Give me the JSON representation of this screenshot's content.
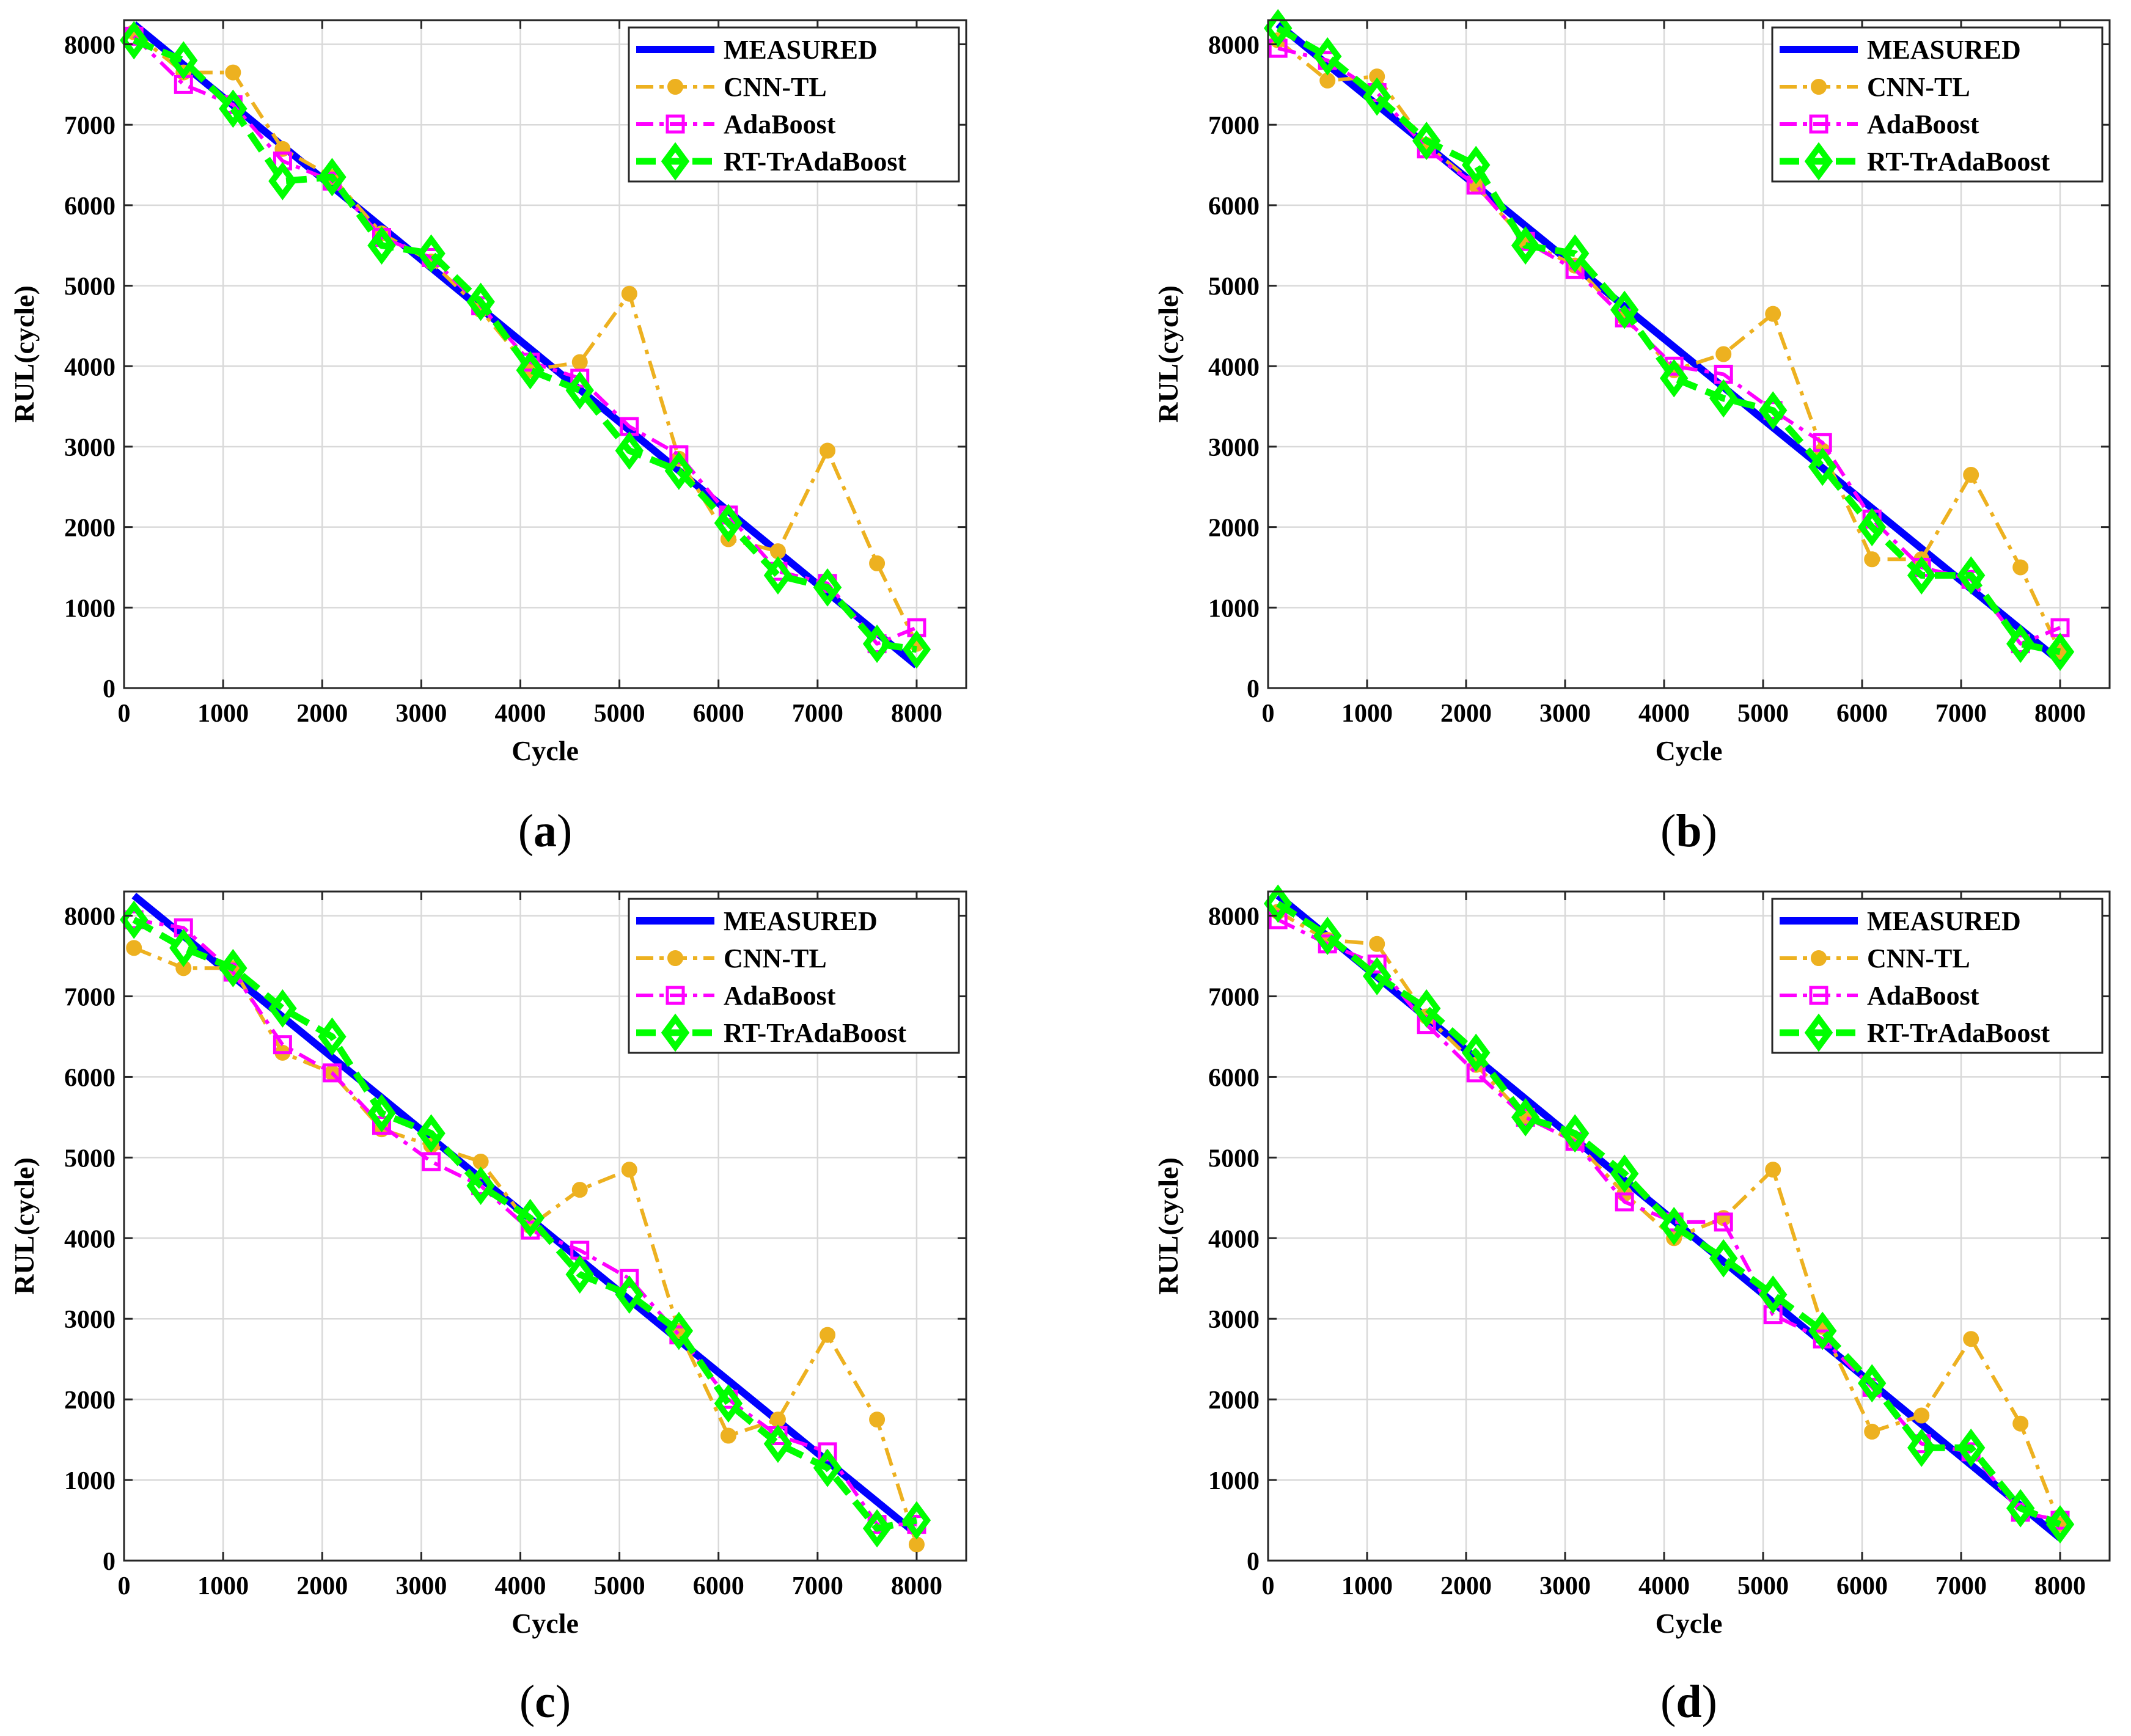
{
  "chart_data": [
    {
      "type": "line",
      "panel_label": "a",
      "xlabel": "Cycle",
      "ylabel": "RUL(cycle)",
      "xlim": [
        0,
        8500
      ],
      "ylim": [
        0,
        8300
      ],
      "xticks": [
        0,
        1000,
        2000,
        3000,
        4000,
        5000,
        6000,
        7000,
        8000
      ],
      "yticks": [
        0,
        1000,
        2000,
        3000,
        4000,
        5000,
        6000,
        7000,
        8000
      ],
      "grid": true,
      "legend_position": "top-right",
      "series": [
        {
          "name": "MEASURED",
          "color": "#0000ff",
          "style": "solid",
          "marker": "none",
          "x": [
            100,
            8000
          ],
          "y": [
            8250,
            280
          ]
        },
        {
          "name": "CNN-TL",
          "color": "#edb120",
          "style": "dashdot",
          "marker": "circle",
          "x": [
            100,
            600,
            1100,
            1600,
            2100,
            2600,
            3100,
            3600,
            4100,
            4600,
            5100,
            5600,
            6100,
            6600,
            7100,
            7600,
            8000
          ],
          "y": [
            8150,
            7650,
            7650,
            6700,
            6350,
            5650,
            5300,
            4700,
            3950,
            4050,
            4900,
            2850,
            1850,
            1700,
            2950,
            1550,
            550
          ]
        },
        {
          "name": "AdaBoost",
          "color": "#ff00ff",
          "style": "dashdot",
          "marker": "square",
          "x": [
            100,
            600,
            1100,
            1600,
            2100,
            2600,
            3100,
            3600,
            4100,
            4600,
            5100,
            5600,
            6100,
            6600,
            7100,
            7600,
            8000
          ],
          "y": [
            8100,
            7500,
            7250,
            6550,
            6300,
            5600,
            5350,
            4750,
            4050,
            3850,
            3250,
            2900,
            2150,
            1450,
            1300,
            550,
            750
          ]
        },
        {
          "name": "RT-TrAdaBoost",
          "color": "#00ff00",
          "style": "dashed",
          "marker": "diamond",
          "x": [
            100,
            600,
            1100,
            1600,
            2100,
            2600,
            3100,
            3600,
            4100,
            4600,
            5100,
            5600,
            6100,
            6600,
            7100,
            7600,
            8000
          ],
          "y": [
            8050,
            7800,
            7200,
            6300,
            6350,
            5500,
            5400,
            4800,
            3950,
            3700,
            2950,
            2700,
            2050,
            1400,
            1250,
            550,
            480
          ]
        }
      ]
    },
    {
      "type": "line",
      "panel_label": "b",
      "xlabel": "Cycle",
      "ylabel": "RUL(cycle)",
      "xlim": [
        0,
        8500
      ],
      "ylim": [
        0,
        8300
      ],
      "xticks": [
        0,
        1000,
        2000,
        3000,
        4000,
        5000,
        6000,
        7000,
        8000
      ],
      "yticks": [
        0,
        1000,
        2000,
        3000,
        4000,
        5000,
        6000,
        7000,
        8000
      ],
      "grid": true,
      "legend_position": "top-right",
      "series": [
        {
          "name": "MEASURED",
          "color": "#0000ff",
          "style": "solid",
          "marker": "none",
          "x": [
            100,
            8000
          ],
          "y": [
            8250,
            330
          ]
        },
        {
          "name": "CNN-TL",
          "color": "#edb120",
          "style": "dashdot",
          "marker": "circle",
          "x": [
            100,
            600,
            1100,
            1600,
            2100,
            2600,
            3100,
            3600,
            4100,
            4600,
            5100,
            5600,
            6100,
            6600,
            7100,
            7600,
            8000
          ],
          "y": [
            8050,
            7550,
            7600,
            6750,
            6250,
            5550,
            5250,
            4600,
            3950,
            4150,
            4650,
            2950,
            1600,
            1600,
            2650,
            1500,
            450
          ]
        },
        {
          "name": "AdaBoost",
          "color": "#ff00ff",
          "style": "dashdot",
          "marker": "square",
          "x": [
            100,
            600,
            1100,
            1600,
            2100,
            2600,
            3100,
            3600,
            4100,
            4600,
            5100,
            5600,
            6100,
            6600,
            7100,
            7600,
            8000
          ],
          "y": [
            7950,
            7800,
            7400,
            6700,
            6250,
            5550,
            5200,
            4600,
            4000,
            3900,
            3450,
            3050,
            2100,
            1500,
            1350,
            550,
            750
          ]
        },
        {
          "name": "RT-TrAdaBoost",
          "color": "#00ff00",
          "style": "dashed",
          "marker": "diamond",
          "x": [
            100,
            600,
            1100,
            1600,
            2100,
            2600,
            3100,
            3600,
            4100,
            4600,
            5100,
            5600,
            6100,
            6600,
            7100,
            7600,
            8000
          ],
          "y": [
            8200,
            7850,
            7350,
            6800,
            6500,
            5500,
            5400,
            4700,
            3850,
            3600,
            3450,
            2750,
            2000,
            1400,
            1400,
            550,
            450
          ]
        }
      ]
    },
    {
      "type": "line",
      "panel_label": "c",
      "xlabel": "Cycle",
      "ylabel": "RUL(cycle)",
      "xlim": [
        0,
        8500
      ],
      "ylim": [
        0,
        8300
      ],
      "xticks": [
        0,
        1000,
        2000,
        3000,
        4000,
        5000,
        6000,
        7000,
        8000
      ],
      "yticks": [
        0,
        1000,
        2000,
        3000,
        4000,
        5000,
        6000,
        7000,
        8000
      ],
      "grid": true,
      "legend_position": "top-right",
      "series": [
        {
          "name": "MEASURED",
          "color": "#0000ff",
          "style": "solid",
          "marker": "none",
          "x": [
            100,
            8000
          ],
          "y": [
            8250,
            330
          ]
        },
        {
          "name": "CNN-TL",
          "color": "#edb120",
          "style": "dashdot",
          "marker": "circle",
          "x": [
            100,
            600,
            1100,
            1600,
            2100,
            2600,
            3100,
            3600,
            4100,
            4600,
            5100,
            5600,
            6100,
            6600,
            7100,
            7600,
            8000
          ],
          "y": [
            7600,
            7350,
            7350,
            6300,
            6050,
            5350,
            5150,
            4950,
            4150,
            4600,
            4850,
            2850,
            1550,
            1750,
            2800,
            1750,
            200
          ]
        },
        {
          "name": "AdaBoost",
          "color": "#ff00ff",
          "style": "dashdot",
          "marker": "square",
          "x": [
            100,
            600,
            1100,
            1600,
            2100,
            2600,
            3100,
            3600,
            4100,
            4600,
            5100,
            5600,
            6100,
            6600,
            7100,
            7600,
            8000
          ],
          "y": [
            7950,
            7850,
            7300,
            6400,
            6050,
            5400,
            4950,
            4650,
            4100,
            3850,
            3500,
            2800,
            2000,
            1550,
            1350,
            450,
            450
          ]
        },
        {
          "name": "RT-TrAdaBoost",
          "color": "#00ff00",
          "style": "dashed",
          "marker": "diamond",
          "x": [
            100,
            600,
            1100,
            1600,
            2100,
            2600,
            3100,
            3600,
            4100,
            4600,
            5100,
            5600,
            6100,
            6600,
            7100,
            7600,
            8000
          ],
          "y": [
            7950,
            7600,
            7350,
            6850,
            6500,
            5550,
            5300,
            4650,
            4250,
            3550,
            3300,
            2850,
            1950,
            1450,
            1150,
            400,
            500
          ]
        }
      ]
    },
    {
      "type": "line",
      "panel_label": "d",
      "xlabel": "Cycle",
      "ylabel": "RUL(cycle)",
      "xlim": [
        0,
        8500
      ],
      "ylim": [
        0,
        8300
      ],
      "xticks": [
        0,
        1000,
        2000,
        3000,
        4000,
        5000,
        6000,
        7000,
        8000
      ],
      "yticks": [
        0,
        1000,
        2000,
        3000,
        4000,
        5000,
        6000,
        7000,
        8000
      ],
      "grid": true,
      "legend_position": "top-right",
      "series": [
        {
          "name": "MEASURED",
          "color": "#0000ff",
          "style": "solid",
          "marker": "none",
          "x": [
            100,
            8000
          ],
          "y": [
            8250,
            280
          ]
        },
        {
          "name": "CNN-TL",
          "color": "#edb120",
          "style": "dashdot",
          "marker": "circle",
          "x": [
            100,
            600,
            1100,
            1600,
            2100,
            2600,
            3100,
            3600,
            4100,
            4600,
            5100,
            5600,
            6100,
            6600,
            7100,
            7600,
            8000
          ],
          "y": [
            8050,
            7700,
            7650,
            6750,
            6150,
            5500,
            5200,
            4550,
            4000,
            4250,
            4850,
            2900,
            1600,
            1800,
            2750,
            1700,
            450
          ]
        },
        {
          "name": "AdaBoost",
          "color": "#ff00ff",
          "style": "dashdot",
          "marker": "square",
          "x": [
            100,
            600,
            1100,
            1600,
            2100,
            2600,
            3100,
            3600,
            4100,
            4600,
            5100,
            5600,
            6100,
            6600,
            7100,
            7600,
            8000
          ],
          "y": [
            7950,
            7650,
            7400,
            6650,
            6050,
            5500,
            5200,
            4450,
            4200,
            4200,
            3050,
            2750,
            2150,
            1450,
            1350,
            600,
            500
          ]
        },
        {
          "name": "RT-TrAdaBoost",
          "color": "#00ff00",
          "style": "dashed",
          "marker": "diamond",
          "x": [
            100,
            600,
            1100,
            1600,
            2100,
            2600,
            3100,
            3600,
            4100,
            4600,
            5100,
            5600,
            6100,
            6600,
            7100,
            7600,
            8000
          ],
          "y": [
            8150,
            7750,
            7250,
            6850,
            6300,
            5500,
            5300,
            4800,
            4150,
            3750,
            3300,
            2850,
            2200,
            1400,
            1400,
            650,
            450
          ]
        }
      ]
    }
  ]
}
